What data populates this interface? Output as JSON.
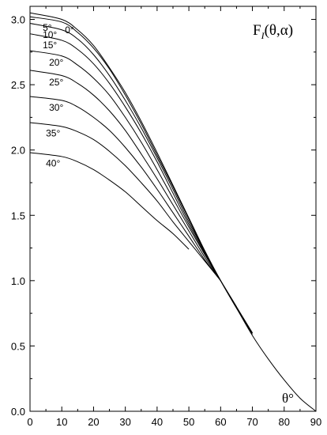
{
  "chart_data": {
    "type": "line",
    "title": "F",
    "title_subscript": "I",
    "title_suffix": "(θ,α)",
    "xlabel": "θ°",
    "ylabel": "",
    "xlim": [
      0,
      90
    ],
    "ylim": [
      0,
      3.1
    ],
    "xticks": [
      0,
      10,
      20,
      30,
      40,
      50,
      60,
      70,
      80,
      90
    ],
    "yticks": [
      0.0,
      0.5,
      1.0,
      1.5,
      2.0,
      2.5,
      3.0
    ],
    "xtick_labels": [
      "0",
      "10",
      "20",
      "30",
      "40",
      "50",
      "60",
      "70",
      "80",
      "90"
    ],
    "ytick_labels": [
      "0.0",
      "0.5",
      "1.0",
      "1.5",
      "2.0",
      "2.5",
      "3.0"
    ],
    "grid": false,
    "series": [
      {
        "name": "0°",
        "x": [
          0,
          10,
          15,
          20,
          25,
          30,
          35,
          40,
          45,
          50,
          55,
          60,
          65,
          70,
          75,
          80,
          85,
          90
        ],
        "y": [
          3.05,
          3.0,
          2.92,
          2.8,
          2.63,
          2.44,
          2.22,
          1.98,
          1.73,
          1.48,
          1.23,
          1.0,
          0.79,
          0.58,
          0.4,
          0.24,
          0.1,
          0.0
        ]
      },
      {
        "name": "5°",
        "x": [
          0,
          10,
          15,
          20,
          25,
          30,
          35,
          40,
          45,
          50,
          55,
          60,
          65,
          70
        ],
        "y": [
          3.02,
          2.98,
          2.9,
          2.78,
          2.62,
          2.42,
          2.2,
          1.96,
          1.72,
          1.47,
          1.22,
          1.0,
          0.79,
          0.59
        ]
      },
      {
        "name": "10°",
        "x": [
          0,
          10,
          15,
          20,
          25,
          30,
          35,
          40,
          45,
          50,
          55,
          60,
          65,
          70
        ],
        "y": [
          2.97,
          2.92,
          2.85,
          2.73,
          2.57,
          2.38,
          2.17,
          1.94,
          1.7,
          1.45,
          1.22,
          1.0,
          0.79,
          0.6
        ]
      },
      {
        "name": "15°",
        "x": [
          0,
          10,
          15,
          20,
          25,
          30,
          35,
          40,
          45,
          50,
          55,
          60,
          65,
          70
        ],
        "y": [
          2.89,
          2.84,
          2.77,
          2.66,
          2.51,
          2.33,
          2.13,
          1.91,
          1.67,
          1.43,
          1.21,
          1.0,
          0.8,
          0.6
        ]
      },
      {
        "name": "20°",
        "x": [
          0,
          10,
          15,
          20,
          25,
          30,
          35,
          40,
          45,
          50,
          55,
          60,
          65
        ],
        "y": [
          2.76,
          2.72,
          2.65,
          2.55,
          2.42,
          2.25,
          2.06,
          1.85,
          1.63,
          1.41,
          1.2,
          1.0,
          0.8
        ]
      },
      {
        "name": "25°",
        "x": [
          0,
          10,
          15,
          20,
          25,
          30,
          35,
          40,
          45,
          50,
          55,
          60
        ],
        "y": [
          2.61,
          2.57,
          2.51,
          2.42,
          2.3,
          2.15,
          1.97,
          1.78,
          1.58,
          1.38,
          1.18,
          1.0
        ]
      },
      {
        "name": "30°",
        "x": [
          0,
          10,
          15,
          20,
          25,
          30,
          35,
          40,
          45,
          50,
          55,
          60
        ],
        "y": [
          2.41,
          2.38,
          2.33,
          2.25,
          2.15,
          2.02,
          1.87,
          1.7,
          1.52,
          1.34,
          1.16,
          1.0
        ]
      },
      {
        "name": "35°",
        "x": [
          0,
          10,
          15,
          20,
          25,
          30,
          35,
          40,
          45,
          50,
          55,
          60
        ],
        "y": [
          2.21,
          2.18,
          2.14,
          2.08,
          1.99,
          1.88,
          1.75,
          1.61,
          1.45,
          1.3,
          1.15,
          1.0
        ]
      },
      {
        "name": "40°",
        "x": [
          0,
          10,
          15,
          20,
          25,
          30,
          35,
          40,
          45,
          50
        ],
        "y": [
          1.98,
          1.95,
          1.91,
          1.85,
          1.77,
          1.68,
          1.57,
          1.46,
          1.36,
          1.24
        ]
      }
    ]
  }
}
